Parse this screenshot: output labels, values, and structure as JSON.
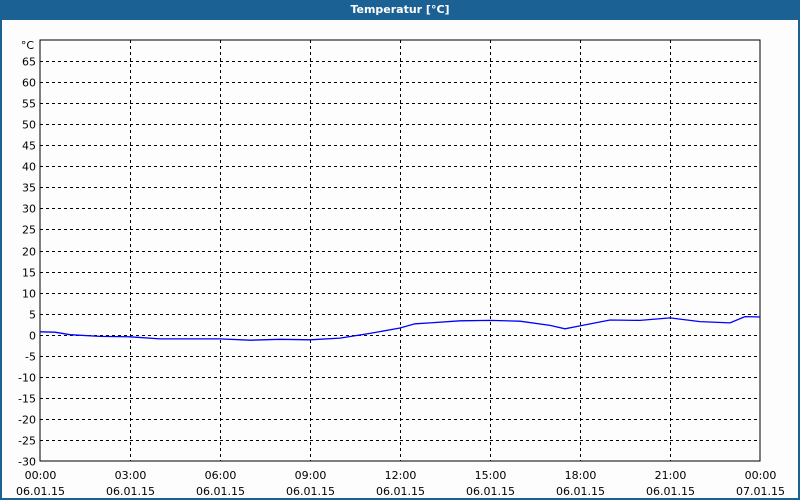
{
  "chart_data": {
    "type": "line",
    "title": "Temperatur [°C]",
    "ylabel": "°C",
    "ylim": [
      -30,
      70
    ],
    "yticks": [
      65,
      60,
      55,
      50,
      45,
      40,
      35,
      30,
      25,
      20,
      15,
      10,
      5,
      0,
      -5,
      -10,
      -15,
      -20,
      -25,
      -30
    ],
    "xticks": [
      {
        "time": "00:00",
        "date": "06.01.15"
      },
      {
        "time": "03:00",
        "date": "06.01.15"
      },
      {
        "time": "06:00",
        "date": "06.01.15"
      },
      {
        "time": "09:00",
        "date": "06.01.15"
      },
      {
        "time": "12:00",
        "date": "06.01.15"
      },
      {
        "time": "15:00",
        "date": "06.01.15"
      },
      {
        "time": "18:00",
        "date": "06.01.15"
      },
      {
        "time": "21:00",
        "date": "06.01.15"
      },
      {
        "time": "00:00",
        "date": "07.01.15"
      }
    ],
    "grid": true,
    "line_color": "#0000ff",
    "x": [
      "00:00",
      "00:30",
      "01:00",
      "02:00",
      "03:00",
      "04:00",
      "05:00",
      "06:00",
      "07:00",
      "08:00",
      "09:00",
      "10:00",
      "11:00",
      "12:00",
      "12:30",
      "13:00",
      "14:00",
      "15:00",
      "16:00",
      "17:00",
      "17:30",
      "18:00",
      "19:00",
      "20:00",
      "21:00",
      "22:00",
      "23:00",
      "23:30",
      "24:00"
    ],
    "values": [
      0.7,
      0.6,
      0,
      -0.4,
      -0.5,
      -1.0,
      -1.0,
      -1.0,
      -1.3,
      -1.1,
      -1.2,
      -0.8,
      0.3,
      1.6,
      2.6,
      2.8,
      3.3,
      3.4,
      3.2,
      2.2,
      1.4,
      2.1,
      3.5,
      3.4,
      4.0,
      3.1,
      2.8,
      4.3,
      4.2
    ]
  }
}
